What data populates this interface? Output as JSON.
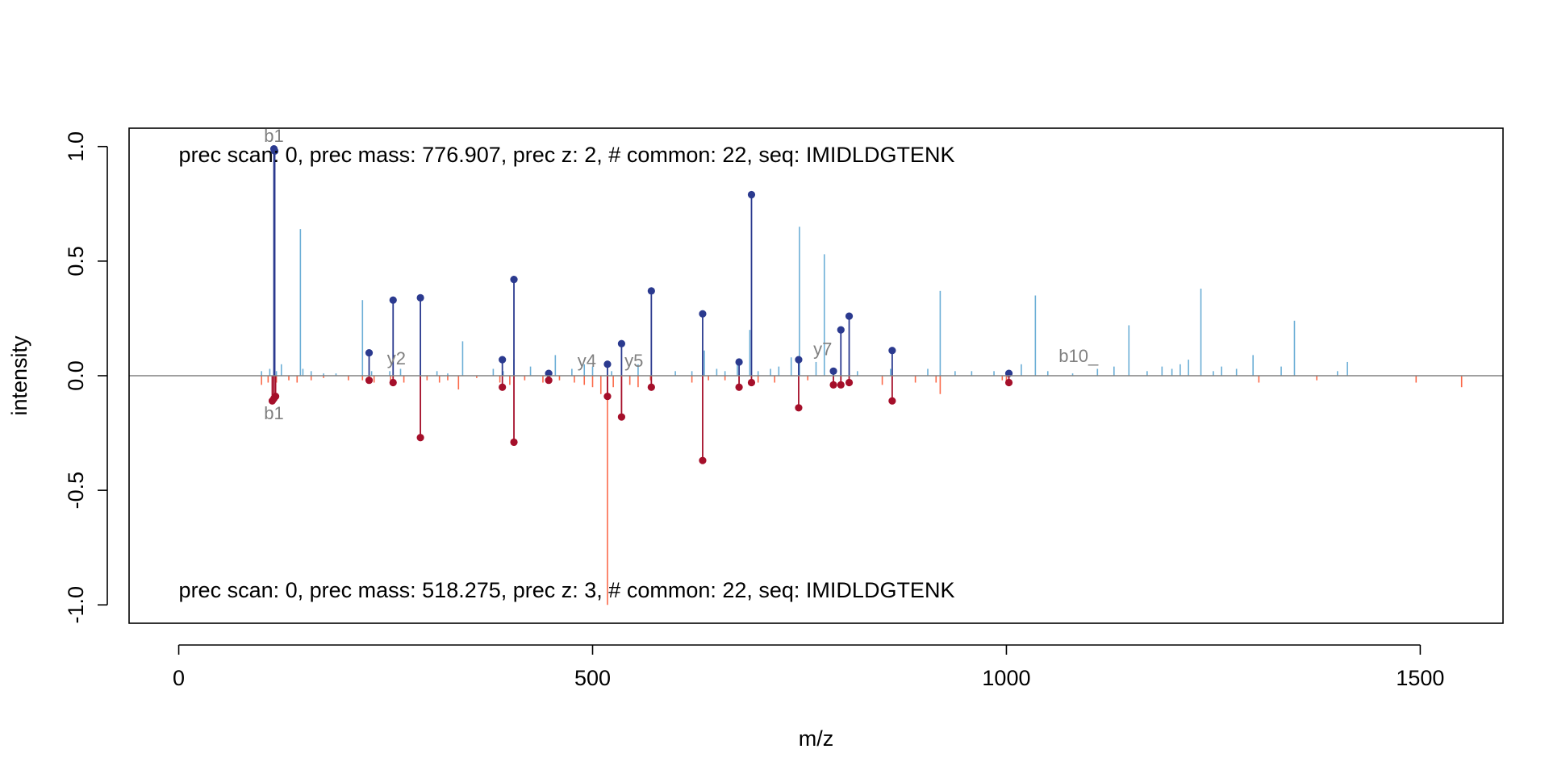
{
  "chart_data": {
    "type": "mirror-spectrum",
    "xlabel": "m/z",
    "ylabel": "intensity",
    "xlim": [
      -60,
      1600
    ],
    "ylim": [
      -1.08,
      1.08
    ],
    "xticks": [
      0,
      500,
      1000,
      1500
    ],
    "xtick_labels": [
      "0",
      "500",
      "1000",
      "1500"
    ],
    "yticks": [
      -1.0,
      -0.5,
      0.0,
      0.5,
      1.0
    ],
    "ytick_labels": [
      "-1.0",
      "-0.5",
      "0.0",
      "0.5",
      "1.0"
    ],
    "grid": false,
    "colors": {
      "top_peaks": "#6baed6",
      "bottom_peaks": "#fb6a4a",
      "top_matched": "#2b3a8f",
      "bottom_matched": "#a50f2a",
      "baseline": "#808080"
    },
    "top_annotation": "prec scan: 0, prec mass: 776.907, prec z: 2, # common: 22, seq: IMIDLDGTENK",
    "bottom_annotation": "prec scan: 0, prec mass: 518.275, prec z: 3, # common: 22, seq: IMIDLDGTENK",
    "top_peaks": [
      [
        100,
        0.02
      ],
      [
        110,
        0.03
      ],
      [
        118,
        0.02
      ],
      [
        124,
        0.05
      ],
      [
        147,
        0.64
      ],
      [
        150,
        0.03
      ],
      [
        160,
        0.02
      ],
      [
        175,
        0.01
      ],
      [
        190,
        0.01
      ],
      [
        222,
        0.33
      ],
      [
        233,
        0.02
      ],
      [
        255,
        0.02
      ],
      [
        268,
        0.03
      ],
      [
        292,
        0.02
      ],
      [
        312,
        0.02
      ],
      [
        325,
        0.01
      ],
      [
        343,
        0.15
      ],
      [
        380,
        0.03
      ],
      [
        392,
        0.02
      ],
      [
        405,
        0.07
      ],
      [
        425,
        0.04
      ],
      [
        455,
        0.09
      ],
      [
        475,
        0.03
      ],
      [
        490,
        0.05
      ],
      [
        500,
        0.04
      ],
      [
        523,
        0.02
      ],
      [
        555,
        0.05
      ],
      [
        600,
        0.02
      ],
      [
        620,
        0.02
      ],
      [
        635,
        0.11
      ],
      [
        650,
        0.03
      ],
      [
        660,
        0.02
      ],
      [
        675,
        0.07
      ],
      [
        690,
        0.2
      ],
      [
        700,
        0.02
      ],
      [
        715,
        0.03
      ],
      [
        725,
        0.04
      ],
      [
        740,
        0.08
      ],
      [
        750,
        0.65
      ],
      [
        770,
        0.06
      ],
      [
        780,
        0.53
      ],
      [
        820,
        0.02
      ],
      [
        860,
        0.03
      ],
      [
        905,
        0.03
      ],
      [
        920,
        0.37
      ],
      [
        938,
        0.02
      ],
      [
        958,
        0.02
      ],
      [
        985,
        0.02
      ],
      [
        1018,
        0.05
      ],
      [
        1035,
        0.35
      ],
      [
        1050,
        0.02
      ],
      [
        1080,
        0.01
      ],
      [
        1110,
        0.03
      ],
      [
        1130,
        0.04
      ],
      [
        1148,
        0.22
      ],
      [
        1170,
        0.02
      ],
      [
        1188,
        0.04
      ],
      [
        1200,
        0.03
      ],
      [
        1210,
        0.05
      ],
      [
        1220,
        0.07
      ],
      [
        1235,
        0.38
      ],
      [
        1250,
        0.02
      ],
      [
        1260,
        0.04
      ],
      [
        1278,
        0.03
      ],
      [
        1298,
        0.09
      ],
      [
        1332,
        0.04
      ],
      [
        1348,
        0.24
      ],
      [
        1400,
        0.02
      ],
      [
        1412,
        0.06
      ]
    ],
    "bottom_peaks": [
      [
        100,
        -0.04
      ],
      [
        108,
        -0.03
      ],
      [
        118,
        -0.03
      ],
      [
        133,
        -0.02
      ],
      [
        143,
        -0.03
      ],
      [
        160,
        -0.02
      ],
      [
        175,
        -0.01
      ],
      [
        205,
        -0.02
      ],
      [
        222,
        -0.02
      ],
      [
        236,
        -0.03
      ],
      [
        256,
        -0.02
      ],
      [
        272,
        -0.03
      ],
      [
        300,
        -0.02
      ],
      [
        315,
        -0.03
      ],
      [
        325,
        -0.02
      ],
      [
        338,
        -0.06
      ],
      [
        360,
        -0.01
      ],
      [
        388,
        -0.03
      ],
      [
        400,
        -0.04
      ],
      [
        418,
        -0.02
      ],
      [
        440,
        -0.03
      ],
      [
        460,
        -0.02
      ],
      [
        478,
        -0.03
      ],
      [
        490,
        -0.04
      ],
      [
        500,
        -0.05
      ],
      [
        510,
        -0.08
      ],
      [
        518,
        -1.0
      ],
      [
        525,
        -0.05
      ],
      [
        545,
        -0.04
      ],
      [
        555,
        -0.05
      ],
      [
        570,
        -0.02
      ],
      [
        620,
        -0.03
      ],
      [
        640,
        -0.02
      ],
      [
        660,
        -0.02
      ],
      [
        700,
        -0.03
      ],
      [
        720,
        -0.03
      ],
      [
        760,
        -0.02
      ],
      [
        800,
        -0.02
      ],
      [
        850,
        -0.04
      ],
      [
        890,
        -0.03
      ],
      [
        915,
        -0.03
      ],
      [
        920,
        -0.08
      ],
      [
        995,
        -0.02
      ],
      [
        1000,
        -0.03
      ],
      [
        1305,
        -0.03
      ],
      [
        1375,
        -0.02
      ],
      [
        1495,
        -0.03
      ],
      [
        1550,
        -0.05
      ]
    ],
    "top_matched": [
      [
        115,
        0.99
      ],
      [
        116,
        0.98
      ],
      [
        230,
        0.1
      ],
      [
        259,
        0.33
      ],
      [
        292,
        0.34
      ],
      [
        391,
        0.07
      ],
      [
        405,
        0.42
      ],
      [
        447,
        0.01
      ],
      [
        518,
        0.05
      ],
      [
        535,
        0.14
      ],
      [
        571,
        0.37
      ],
      [
        633,
        0.27
      ],
      [
        677,
        0.06
      ],
      [
        692,
        0.79
      ],
      [
        749,
        0.07
      ],
      [
        791,
        0.02
      ],
      [
        800,
        0.2
      ],
      [
        810,
        0.26
      ],
      [
        862,
        0.11
      ],
      [
        1003,
        0.01
      ]
    ],
    "bottom_matched": [
      [
        113,
        -0.11
      ],
      [
        115,
        -0.1
      ],
      [
        117,
        -0.09
      ],
      [
        230,
        -0.02
      ],
      [
        259,
        -0.03
      ],
      [
        292,
        -0.27
      ],
      [
        391,
        -0.05
      ],
      [
        405,
        -0.29
      ],
      [
        447,
        -0.02
      ],
      [
        518,
        -0.09
      ],
      [
        535,
        -0.18
      ],
      [
        571,
        -0.05
      ],
      [
        633,
        -0.37
      ],
      [
        677,
        -0.05
      ],
      [
        692,
        -0.03
      ],
      [
        749,
        -0.14
      ],
      [
        791,
        -0.04
      ],
      [
        800,
        -0.04
      ],
      [
        810,
        -0.03
      ],
      [
        862,
        -0.11
      ],
      [
        1003,
        -0.03
      ]
    ],
    "ion_labels": [
      {
        "text": "b1",
        "x": 115,
        "y": 1.04
      },
      {
        "text": "y2",
        "x": 263,
        "y": 0.07
      },
      {
        "text": "y4",
        "x": 493,
        "y": 0.06
      },
      {
        "text": "y5",
        "x": 550,
        "y": 0.06
      },
      {
        "text": "y7",
        "x": 778,
        "y": 0.11
      },
      {
        "text": "b10_",
        "x": 1087,
        "y": 0.08
      },
      {
        "text": "b1",
        "x": 115,
        "y": -0.17
      }
    ]
  }
}
